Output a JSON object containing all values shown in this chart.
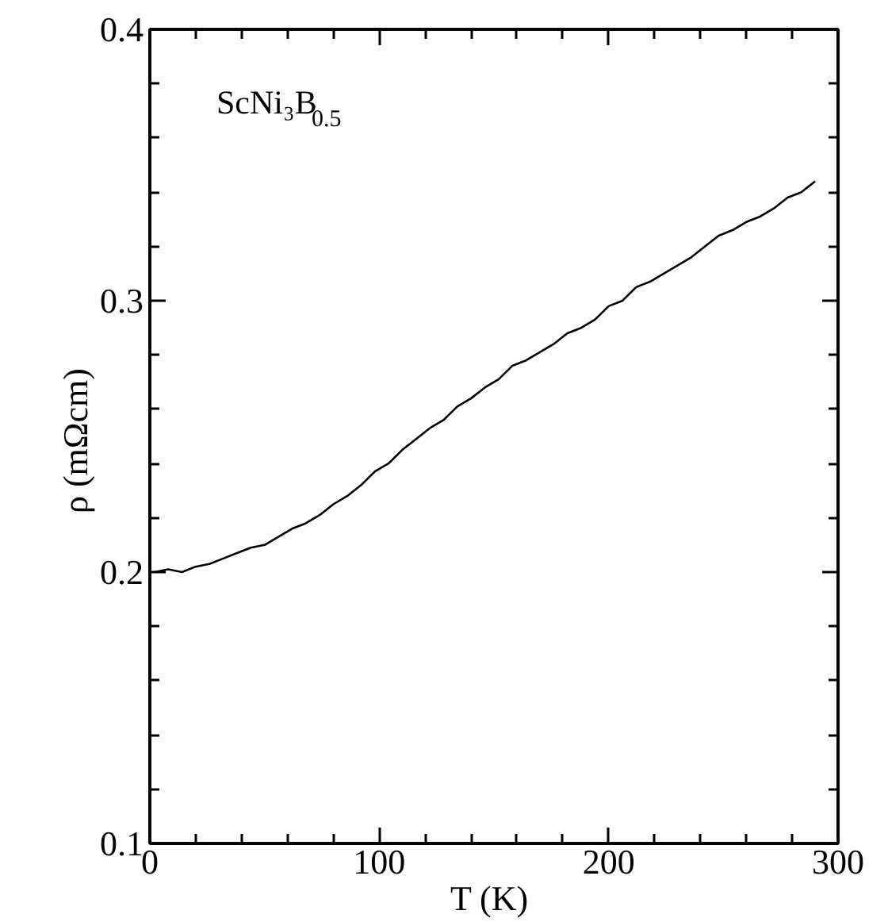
{
  "chart_data": {
    "type": "line",
    "xlabel": "T  (K)",
    "ylabel": "ρ  (mΩcm)",
    "annotations": [
      "ScNi₃B$_{0.5}$"
    ],
    "xlim": [
      0,
      300
    ],
    "ylim": [
      0.1,
      0.4
    ],
    "xticks": [
      0,
      100,
      200,
      300
    ],
    "yticks": [
      0.1,
      0.2,
      0.3,
      0.4
    ],
    "grid": false,
    "marker": "none",
    "line_style": "solid",
    "series": [
      {
        "color": "#000000",
        "x": [
          2,
          8,
          14,
          20,
          26,
          32,
          38,
          44,
          50,
          56,
          62,
          68,
          74,
          80,
          86,
          92,
          98,
          104,
          110,
          116,
          122,
          128,
          134,
          140,
          146,
          152,
          158,
          164,
          170,
          176,
          182,
          188,
          194,
          200,
          206,
          212,
          218,
          224,
          230,
          236,
          242,
          248,
          254,
          260,
          266,
          272,
          278,
          284,
          290
        ],
        "values": [
          0.2,
          0.201,
          0.2,
          0.202,
          0.203,
          0.205,
          0.207,
          0.209,
          0.21,
          0.213,
          0.216,
          0.218,
          0.221,
          0.225,
          0.228,
          0.232,
          0.237,
          0.24,
          0.245,
          0.249,
          0.253,
          0.256,
          0.261,
          0.264,
          0.268,
          0.271,
          0.276,
          0.278,
          0.281,
          0.284,
          0.288,
          0.29,
          0.293,
          0.298,
          0.3,
          0.305,
          0.307,
          0.31,
          0.313,
          0.316,
          0.32,
          0.324,
          0.326,
          0.329,
          0.331,
          0.334,
          0.338,
          0.34,
          0.344
        ]
      }
    ]
  }
}
